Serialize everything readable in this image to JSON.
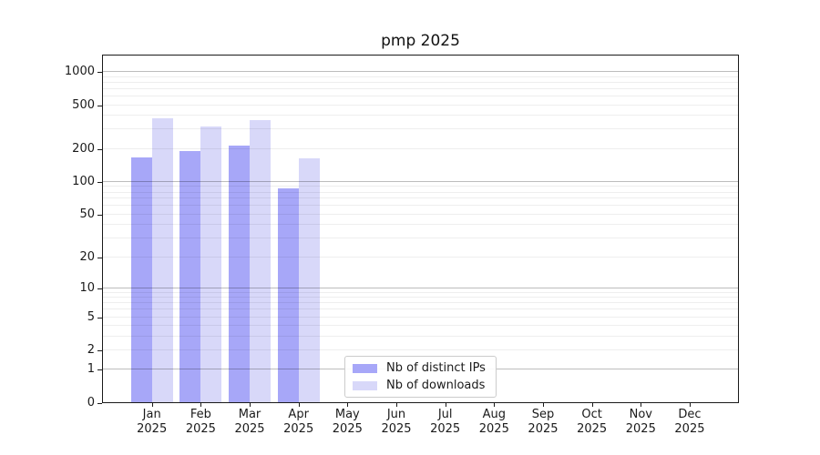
{
  "title": "pmp 2025",
  "chart_data": {
    "type": "bar",
    "title": "pmp 2025",
    "categories": [
      "Jan",
      "Feb",
      "Mar",
      "Apr",
      "May",
      "Jun",
      "Jul",
      "Aug",
      "Sep",
      "Oct",
      "Nov",
      "Dec"
    ],
    "category_year": "2025",
    "series": [
      {
        "name": "Nb of distinct IPs",
        "color": "#a7a7f8",
        "values": [
          164,
          186,
          209,
          85,
          0,
          0,
          0,
          0,
          0,
          0,
          0,
          0
        ]
      },
      {
        "name": "Nb of downloads",
        "color": "#d8d8f9",
        "values": [
          376,
          311,
          358,
          161,
          0,
          0,
          0,
          0,
          0,
          0,
          0,
          0
        ]
      }
    ],
    "y_axis": {
      "scale": "log10(value+1)",
      "ticks": [
        0,
        1,
        2,
        5,
        10,
        20,
        50,
        100,
        200,
        500,
        1000
      ],
      "major_grid_values": [
        1,
        10,
        100,
        1000
      ],
      "ylim_top_approx": 1400
    },
    "grid": true,
    "legend_position": "lower center",
    "background_color": "#ffffff",
    "spine_color": "#1a1a1a"
  }
}
